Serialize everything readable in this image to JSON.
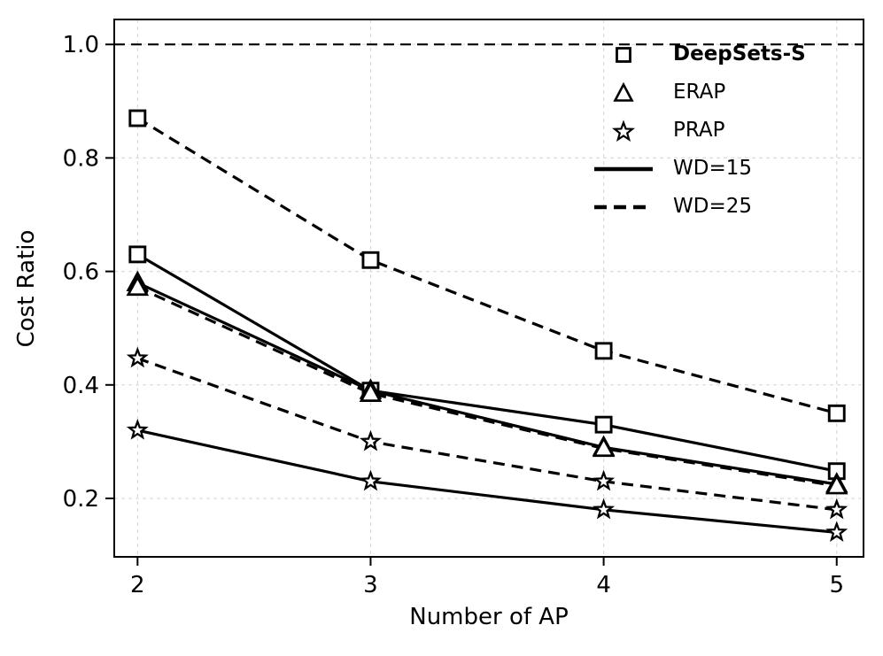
{
  "figure": {
    "xlabel": "Number of AP",
    "ylabel": "Cost Ratio"
  },
  "legend": {
    "items": [
      {
        "label": "DeepSets-S",
        "glyph": "square-marker",
        "bold": true
      },
      {
        "label": "ERAP",
        "glyph": "triangle-marker",
        "bold": false
      },
      {
        "label": "PRAP",
        "glyph": "star-marker",
        "bold": false
      },
      {
        "label": "WD=15",
        "glyph": "solid-line",
        "bold": false
      },
      {
        "label": "WD=25",
        "glyph": "dashed-line",
        "bold": false
      }
    ]
  },
  "chart_data": {
    "type": "line",
    "title": "",
    "xlabel": "Number of AP",
    "ylabel": "Cost Ratio",
    "x": [
      2,
      3,
      4,
      5
    ],
    "xticks": [
      2,
      3,
      4,
      5
    ],
    "yticks": [
      0.2,
      0.4,
      0.6,
      0.8,
      1.0
    ],
    "xlim": [
      1.9,
      5.115
    ],
    "ylim": [
      0.097,
      1.044
    ],
    "grid": true,
    "legend_position": "upper right",
    "reference_line": {
      "y": 1.0,
      "style": "dashed",
      "color": "#000000"
    },
    "colors": {
      "line": "#000000",
      "grid": "#dcdcdc",
      "background": "#ffffff",
      "marker_fill": "#ffffff"
    },
    "series": [
      {
        "name": "DeepSets-S WD=15",
        "marker": "square",
        "line": "solid",
        "values": [
          0.63,
          0.39,
          0.33,
          0.248
        ]
      },
      {
        "name": "DeepSets-S WD=25",
        "marker": "square",
        "line": "dashed",
        "values": [
          0.87,
          0.62,
          0.46,
          0.35
        ]
      },
      {
        "name": "ERAP WD=15",
        "marker": "triangle",
        "line": "solid",
        "values": [
          0.58,
          0.39,
          0.29,
          0.225
        ]
      },
      {
        "name": "ERAP WD=25",
        "marker": "triangle",
        "line": "dashed",
        "values": [
          0.572,
          0.385,
          0.288,
          0.222
        ]
      },
      {
        "name": "PRAP WD=15",
        "marker": "star",
        "line": "solid",
        "values": [
          0.32,
          0.23,
          0.18,
          0.14
        ]
      },
      {
        "name": "PRAP WD=25",
        "marker": "star",
        "line": "dashed",
        "values": [
          0.447,
          0.3,
          0.23,
          0.18
        ]
      }
    ]
  }
}
